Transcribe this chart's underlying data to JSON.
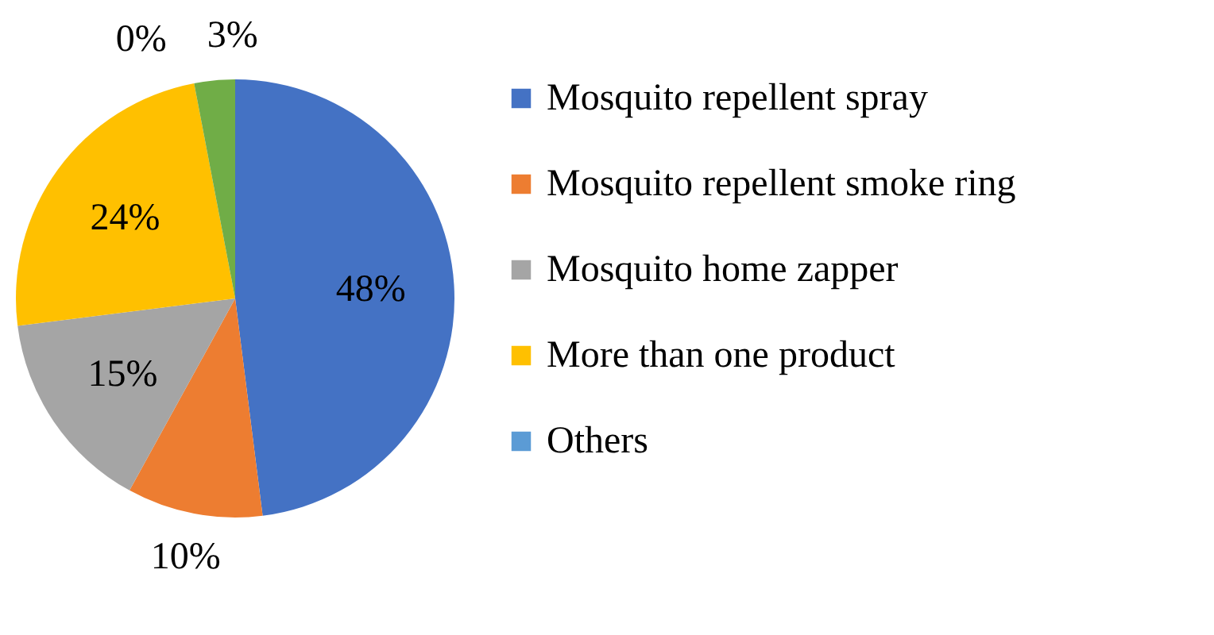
{
  "chart_data": {
    "type": "pie",
    "categories": [
      "Mosquito repellent spray",
      "Mosquito repellent smoke ring",
      "Mosquito home zapper",
      "More than one product",
      "Others",
      null
    ],
    "values": [
      48,
      10,
      15,
      24,
      0,
      3
    ],
    "value_labels": [
      "48%",
      "10%",
      "15%",
      "24%",
      "0%",
      "3%"
    ],
    "colors": [
      "#4472c4",
      "#ed7d31",
      "#a5a5a5",
      "#ffc000",
      "#5b9bd5",
      "#70ad47"
    ],
    "legend": "right"
  }
}
